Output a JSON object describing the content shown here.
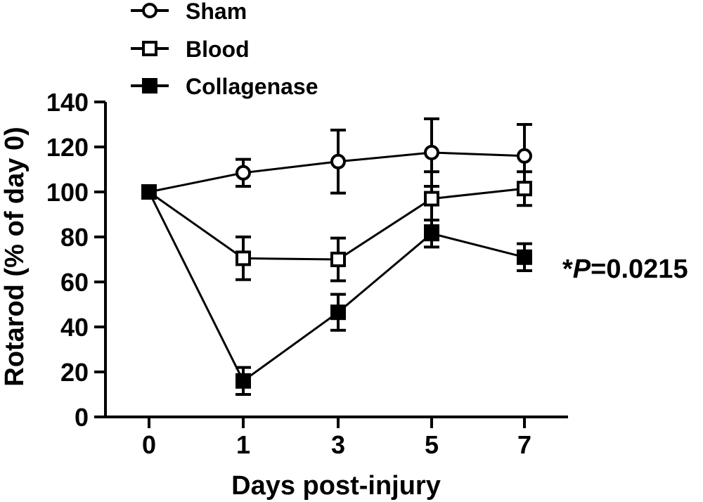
{
  "chart_data": {
    "type": "line",
    "xlabel": "Days post-injury",
    "ylabel": "Rotarod (% of day 0)",
    "xticks": [
      "0",
      "1",
      "3",
      "5",
      "7"
    ],
    "ylim": [
      0,
      140
    ],
    "yticks": [
      "0",
      "20",
      "40",
      "60",
      "80",
      "100",
      "120",
      "140"
    ],
    "annotation": {
      "prefix": "*",
      "italic": "P",
      "suffix": "=0.0215"
    },
    "legend_position": "top-left",
    "series": [
      {
        "name": "Sham",
        "marker": "open-circle",
        "x": [
          0,
          1,
          3,
          5,
          7
        ],
        "values": [
          100,
          108.5,
          113.5,
          117.5,
          116
        ],
        "errors": [
          0,
          6,
          14,
          15,
          14
        ]
      },
      {
        "name": "Blood",
        "marker": "open-square",
        "x": [
          0,
          1,
          3,
          5,
          7
        ],
        "values": [
          100,
          70.5,
          70,
          97,
          101.5
        ],
        "errors": [
          0,
          9.5,
          9.5,
          12,
          7.5
        ]
      },
      {
        "name": "Collagenase",
        "marker": "filled-square",
        "x": [
          0,
          1,
          3,
          5,
          7
        ],
        "values": [
          100,
          16,
          46.5,
          81.5,
          71
        ],
        "errors": [
          0,
          6,
          8,
          6,
          6
        ]
      }
    ]
  }
}
